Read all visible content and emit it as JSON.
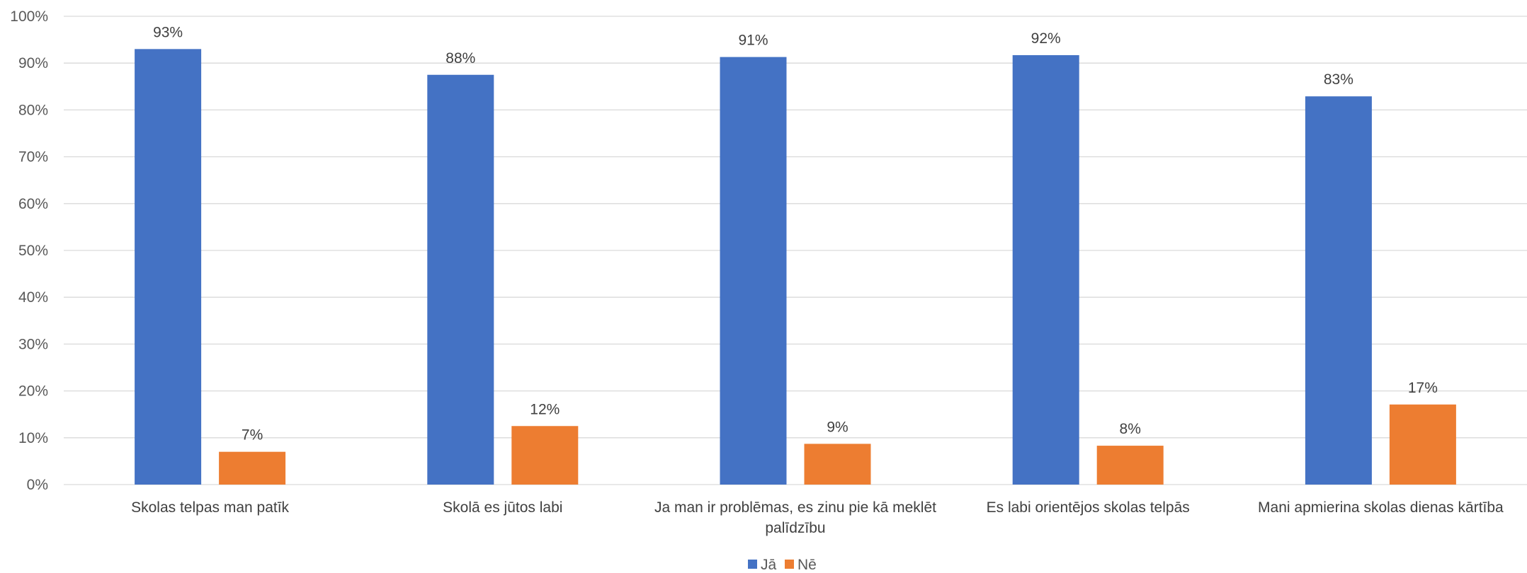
{
  "chart_data": {
    "type": "bar",
    "categories": [
      [
        "Skolas telpas man patīk"
      ],
      [
        "Skolā es jūtos labi"
      ],
      [
        "Ja man ir problēmas, es zinu pie kā meklēt",
        "palīdzību"
      ],
      [
        "Es labi orientējos skolas telpās"
      ],
      [
        "Mani apmierina skolas dienas kārtība"
      ]
    ],
    "series": [
      {
        "name": "Jā",
        "color": "#4472C4",
        "values": [
          93,
          87.5,
          91.3,
          91.7,
          82.9
        ],
        "labels": [
          "93%",
          "88%",
          "91%",
          "92%",
          "83%"
        ]
      },
      {
        "name": "Nē",
        "color": "#ED7D31",
        "values": [
          7,
          12.5,
          8.7,
          8.3,
          17.1
        ],
        "labels": [
          "7%",
          "12%",
          "9%",
          "8%",
          "17%"
        ]
      }
    ],
    "ylim": [
      0,
      100
    ],
    "yticks": [
      "0%",
      "10%",
      "20%",
      "30%",
      "40%",
      "50%",
      "60%",
      "70%",
      "80%",
      "90%",
      "100%"
    ],
    "grid": true,
    "legend": "bottom-center",
    "title": "",
    "xlabel": "",
    "ylabel": ""
  }
}
